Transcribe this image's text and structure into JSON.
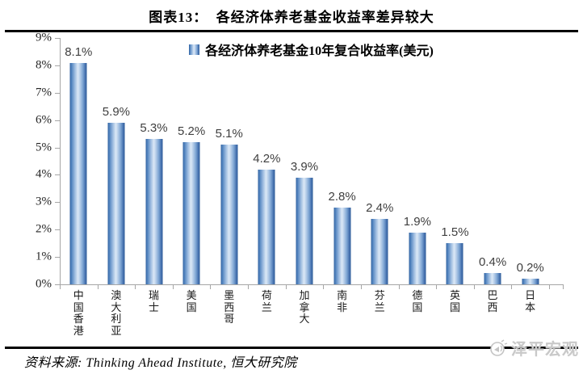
{
  "header": {
    "title": "图表13：  各经济体养老基金收益率差异较大"
  },
  "chart_data": {
    "type": "bar",
    "title": "各经济体养老基金收益率差异较大",
    "legend": "各经济体养老基金10年复合收益率(美元)",
    "legend_position": "top-center",
    "categories": [
      "中国香港",
      "澳大利亚",
      "瑞士",
      "美国",
      "墨西哥",
      "荷兰",
      "加拿大",
      "南非",
      "芬兰",
      "德国",
      "英国",
      "巴西",
      "日本"
    ],
    "values": [
      8.1,
      5.9,
      5.3,
      5.2,
      5.1,
      4.2,
      3.9,
      2.8,
      2.4,
      1.9,
      1.5,
      0.4,
      0.2
    ],
    "data_labels": [
      "8.1%",
      "5.9%",
      "5.3%",
      "5.2%",
      "5.1%",
      "4.2%",
      "3.9%",
      "2.8%",
      "2.4%",
      "1.9%",
      "1.5%",
      "0.4%",
      "0.2%"
    ],
    "xlabel": "",
    "ylabel": "",
    "ylim": [
      0,
      9
    ],
    "y_tick_labels": [
      "0%",
      "1%",
      "2%",
      "3%",
      "4%",
      "5%",
      "6%",
      "7%",
      "8%",
      "9%"
    ],
    "grid": false,
    "axis_color": "#a6a6a6",
    "bar_gradient": [
      [
        "#30619f",
        0
      ],
      [
        "#4f81bd",
        9
      ],
      [
        "#9dbce0",
        30
      ],
      [
        "#dce8f6",
        47
      ],
      [
        "#c3d7ee",
        56
      ],
      [
        "#7fa6d4",
        76
      ],
      [
        "#436fad",
        92
      ],
      [
        "#2d5c98",
        100
      ]
    ]
  },
  "footer": {
    "source": "资料来源: Thinking Ahead Institute, 恒大研究院"
  },
  "watermark": {
    "label": "泽平宏观",
    "icon": "megaphone-icon",
    "color": "#c9c9c9"
  }
}
